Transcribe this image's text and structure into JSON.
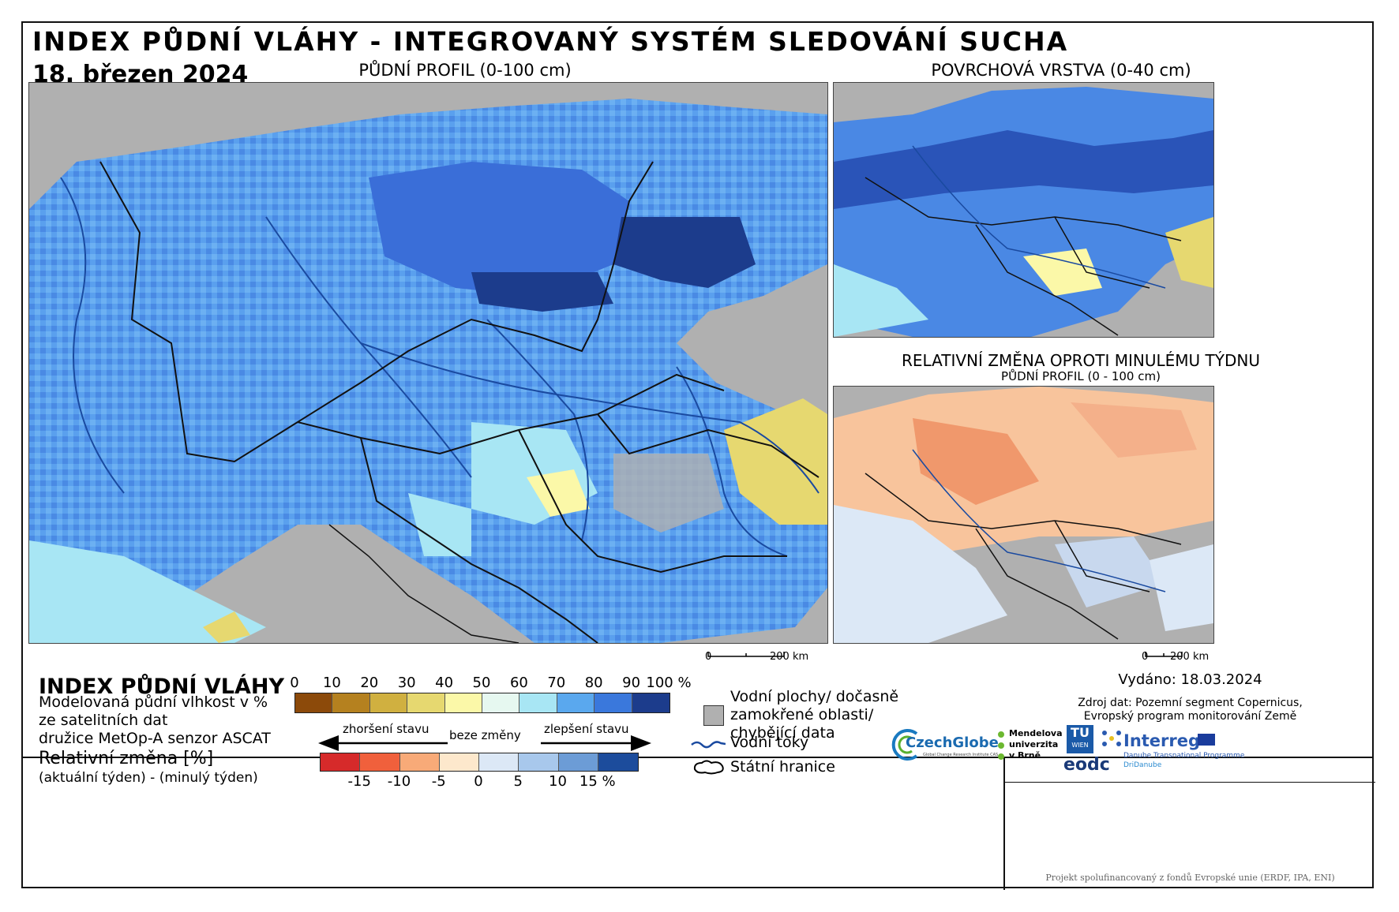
{
  "header": {
    "title": "INDEX PŮDNÍ VLÁHY - INTEGROVANÝ SYSTÉM SLEDOVÁNÍ SUCHA",
    "date": "18. březen 2024"
  },
  "maps": {
    "main_label": "PŮDNÍ PROFIL (0-100 cm)",
    "surface_label": "POVRCHOVÁ VRSTVA (0-40 cm)",
    "change_label_1": "RELATIVNÍ ZMĚNA OPROTI MINULÉMU TÝDNU",
    "change_label_2": "PŮDNÍ PROFIL (0 - 100 cm)",
    "scale_main": {
      "zero": "0",
      "end": "200 km"
    },
    "scale_small": {
      "zero": "0",
      "end": "200 km"
    }
  },
  "legend": {
    "title": "INDEX PŮDNÍ VLÁHY",
    "desc_1": "Modelovaná půdní vlhkost v %",
    "desc_2": "ze satelitních dat",
    "desc_3": "družice MetOp-A senzor ASCAT",
    "change_title": "Relativní změna [%]",
    "change_desc": "(aktuální týden) - (minulý týden)",
    "index_ticks": [
      "0",
      "10",
      "20",
      "30",
      "40",
      "50",
      "60",
      "70",
      "80",
      "90",
      "100 %"
    ],
    "index_colors": [
      "#8c4a0a",
      "#b5811f",
      "#d0b040",
      "#e6d870",
      "#fbf8a8",
      "#e6f8f0",
      "#a8e6f4",
      "#5aa8ee",
      "#3a78dc",
      "#1c3c8c"
    ],
    "arrow_left": "zhoršení stavu",
    "arrow_mid": "beze změny",
    "arrow_right": "zlepšení stavu",
    "change_ticks": [
      "-15",
      "-10",
      "-5",
      "0",
      "5",
      "10",
      "15 %"
    ],
    "change_colors": [
      "#d62a2a",
      "#f0603c",
      "#f8aa78",
      "#fde8cc",
      "#dce8f6",
      "#a8c8ec",
      "#6c9cd6",
      "#1c4c9c"
    ],
    "water_label_1": "Vodní plochy/ dočasně",
    "water_label_2": "zamokřené oblasti/",
    "water_label_3": "chybějící data",
    "rivers_label": "Vodní toky",
    "borders_label": "Státní hranice"
  },
  "issued": {
    "label": "Vydáno: 18.03.2024",
    "source_1": "Zdroj dat: Pozemní segment Copernicus,",
    "source_2": "Evropský program monitorování Země"
  },
  "logos": {
    "czechglobe": "CzechGlobe",
    "czechglobe_sub": "Global Change Research Institute CAS",
    "mendel_1": "Mendelova",
    "mendel_2": "univerzita",
    "mendel_3": "v Brně",
    "tu_1": "TU",
    "tu_2": "WIEN",
    "eodc": "eodc",
    "interreg": "Interreg",
    "interreg_sub_1": "Danube Transnational Programme",
    "interreg_sub_2": "DriDanube"
  },
  "footer": "Projekt spolufinancovaný z fondů Evropské unie (ERDF, IPA, ENI)",
  "colors": {
    "no_data": "#b0b0b0",
    "river": "#1a4aa0",
    "border": "#111111"
  }
}
